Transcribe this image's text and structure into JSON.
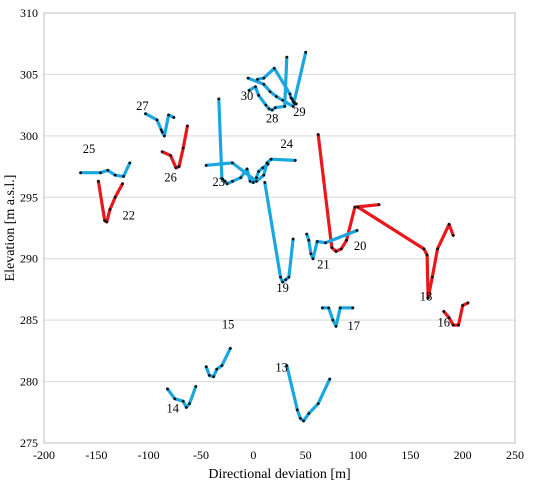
{
  "chart_data": {
    "type": "line",
    "xlabel": "Directional deviation [m]",
    "ylabel": "Elevation [m a.s.l.]",
    "xlim": [
      -200,
      250
    ],
    "ylim": [
      275,
      310
    ],
    "xticks": [
      -200,
      -150,
      -100,
      -50,
      0,
      50,
      100,
      150,
      200,
      250
    ],
    "yticks": [
      275,
      280,
      285,
      290,
      295,
      300,
      305,
      310
    ],
    "grid": "horizontal",
    "legend": "none",
    "colors": {
      "blue": "#1aa7e0",
      "red": "#e8181c",
      "points": "#111111"
    },
    "series": [
      {
        "label": "13",
        "color": "blue",
        "x": [
          32,
          42,
          45,
          48,
          53,
          62,
          73
        ],
        "y": [
          281.3,
          277.7,
          277.0,
          276.8,
          277.4,
          278.2,
          280.2
        ],
        "label_x": 21,
        "label_y": 280.8
      },
      {
        "label": "14",
        "color": "blue",
        "x": [
          -82,
          -75,
          -67,
          -64,
          -61,
          -55
        ],
        "y": [
          279.4,
          278.6,
          278.4,
          277.9,
          278.2,
          279.6
        ],
        "label_x": -83,
        "label_y": 277.5
      },
      {
        "label": "15",
        "color": "blue",
        "x": [
          -45,
          -42,
          -38,
          -35,
          -30,
          -22
        ],
        "y": [
          281.2,
          280.5,
          280.4,
          281.0,
          281.3,
          282.7
        ],
        "label_x": -30,
        "label_y": 284.3
      },
      {
        "label": "16",
        "color": "red",
        "x": [
          182,
          187,
          191,
          196,
          200,
          205
        ],
        "y": [
          285.7,
          285.2,
          284.6,
          284.6,
          286.2,
          286.4
        ],
        "label_x": 176,
        "label_y": 284.5
      },
      {
        "label": "17",
        "color": "blue",
        "x": [
          66,
          72,
          76,
          79,
          83,
          95
        ],
        "y": [
          286.0,
          286.0,
          285.0,
          284.5,
          286.0,
          286.0
        ],
        "label_x": 90,
        "label_y": 284.2
      },
      {
        "label": "18",
        "color": "red",
        "x": [
          100,
          163,
          166,
          167,
          171,
          176,
          187,
          191
        ],
        "y": [
          294.2,
          290.8,
          290.3,
          286.8,
          288.5,
          290.8,
          292.8,
          291.9
        ],
        "label_x": 159,
        "label_y": 286.6
      },
      {
        "label": "19",
        "color": "blue",
        "x": [
          11,
          26,
          28,
          31,
          34,
          38
        ],
        "y": [
          296.2,
          288.5,
          288.1,
          288.3,
          288.5,
          291.6
        ],
        "label_x": 22,
        "label_y": 287.3
      },
      {
        "label": "20",
        "color": "red",
        "x": [
          62,
          75,
          79,
          84,
          89,
          97,
          120
        ],
        "y": [
          300.1,
          290.9,
          290.6,
          290.8,
          291.5,
          294.2,
          294.4
        ],
        "label_x": 96,
        "label_y": 290.7
      },
      {
        "label": "21",
        "color": "blue",
        "x": [
          51,
          53,
          55,
          57,
          61,
          69,
          99
        ],
        "y": [
          292.0,
          291.5,
          290.4,
          290.0,
          291.4,
          291.3,
          292.3
        ],
        "label_x": 61,
        "label_y": 289.2
      },
      {
        "label": "22",
        "color": "red",
        "x": [
          -148,
          -142,
          -140,
          -137,
          -132,
          -125
        ],
        "y": [
          296.3,
          293.1,
          293.0,
          294.0,
          295.0,
          296.1
        ],
        "label_x": -125,
        "label_y": 293.2
      },
      {
        "label": "23",
        "color": "blue",
        "x": [
          -33,
          -30,
          -27,
          -25,
          -20,
          -12,
          -6,
          -3,
          0,
          3,
          5,
          9,
          14
        ],
        "y": [
          303.0,
          296.5,
          296.3,
          296.1,
          296.3,
          296.6,
          297.3,
          296.3,
          296.2,
          296.6,
          297.1,
          297.4,
          297.7
        ],
        "label_x": -39,
        "label_y": 295.9
      },
      {
        "label": "24",
        "color": "blue",
        "x": [
          -45,
          -20,
          3,
          10,
          13,
          17,
          40
        ],
        "y": [
          297.6,
          297.8,
          296.3,
          296.8,
          297.8,
          298.1,
          298.0
        ],
        "label_x": 26,
        "label_y": 299.0
      },
      {
        "label": "25",
        "color": "blue",
        "x": [
          -165,
          -146,
          -139,
          -132,
          -124,
          -118
        ],
        "y": [
          297.0,
          297.0,
          297.2,
          296.8,
          296.7,
          297.8
        ],
        "label_x": -163,
        "label_y": 298.6
      },
      {
        "label": "26",
        "color": "red",
        "x": [
          -87,
          -79,
          -74,
          -71,
          -67,
          -63
        ],
        "y": [
          298.7,
          298.4,
          297.4,
          297.5,
          299.0,
          300.8
        ],
        "label_x": -85,
        "label_y": 296.3
      },
      {
        "label": "27",
        "color": "blue",
        "x": [
          -103,
          -92,
          -88,
          -87,
          -85,
          -81,
          -76
        ],
        "y": [
          301.8,
          301.3,
          300.5,
          300.3,
          300.0,
          301.7,
          301.5
        ],
        "label_x": -112,
        "label_y": 302.1
      },
      {
        "label": "28",
        "color": "blue",
        "x": [
          -4,
          2,
          5,
          12,
          15,
          18,
          21,
          30,
          32
        ],
        "y": [
          303.7,
          304.0,
          303.3,
          302.5,
          302.2,
          302.1,
          302.3,
          302.4,
          306.4
        ],
        "label_x": 12,
        "label_y": 301.1
      },
      {
        "label": "29",
        "color": "blue",
        "x": [
          -5,
          10,
          16,
          22,
          28,
          38,
          50
        ],
        "y": [
          304.7,
          304.2,
          303.6,
          303.2,
          302.9,
          302.4,
          306.8
        ],
        "label_x": 38,
        "label_y": 301.6
      },
      {
        "label": "30",
        "color": "blue",
        "x": [
          4,
          10,
          20,
          35,
          36,
          37,
          38,
          39,
          40,
          41
        ],
        "y": [
          304.6,
          304.7,
          305.5,
          303.4,
          303.1,
          303.0,
          302.8,
          302.7,
          302.6,
          302.6
        ],
        "label_x": -12,
        "label_y": 302.9
      }
    ]
  }
}
